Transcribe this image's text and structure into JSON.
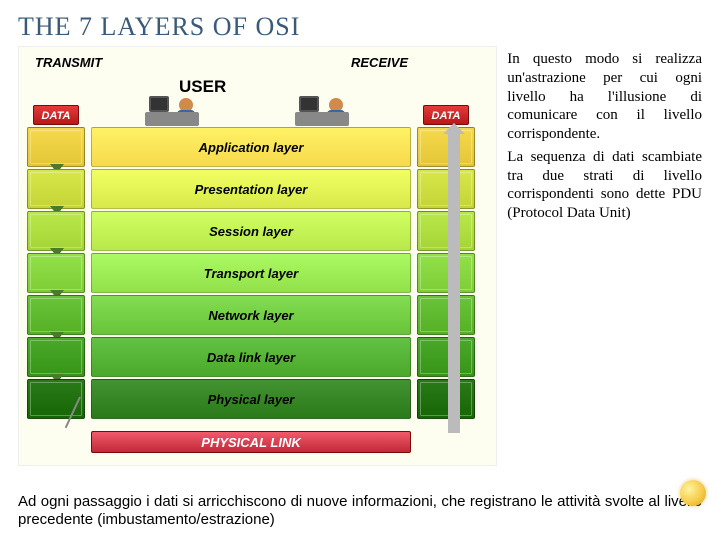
{
  "title_main": "THE 7 LAYERS OF OSI",
  "diagram": {
    "transmit_label": "TRANSMIT",
    "receive_label": "RECEIVE",
    "user_label": "USER",
    "data_label": "DATA",
    "physical_link_label": "PHYSICAL LINK",
    "layers": [
      {
        "name": "Application layer",
        "color": "#f7d94c"
      },
      {
        "name": "Presentation layer",
        "color": "#d8e84a"
      },
      {
        "name": "Session layer",
        "color": "#b8e84a"
      },
      {
        "name": "Transport layer",
        "color": "#92e04a"
      },
      {
        "name": "Network layer",
        "color": "#6ac43a"
      },
      {
        "name": "Data link layer",
        "color": "#4aa82a"
      },
      {
        "name": "Physical layer",
        "color": "#2a7a1a"
      }
    ],
    "background_color": "#fdfdf0",
    "data_box_color": "#d02020",
    "physlink_color": "#d8364a",
    "arrow_color": "#999999"
  },
  "side_paragraph_1": "In questo modo si realizza un'astrazione per cui ogni livello ha l'illusione di comunicare con il livello corrispondente.",
  "side_paragraph_2": "La sequenza di dati scambiate tra due strati di livello corrispondenti sono dette PDU (Protocol Data Unit)",
  "bottom_paragraph": "Ad ogni passaggio i dati si arricchiscono di nuove informazioni, che registrano le attività svolte al livello precedente (imbustamento/estrazione)"
}
